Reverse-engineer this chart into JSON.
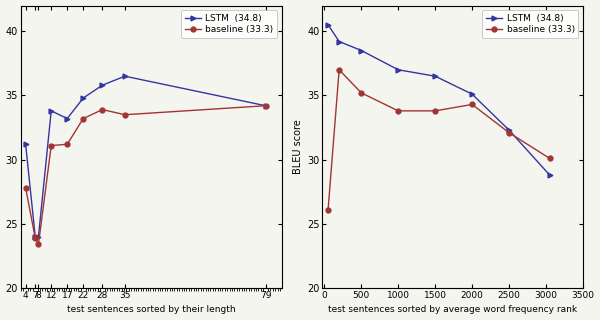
{
  "left": {
    "lstm_x": [
      4,
      7,
      8,
      12,
      17,
      22,
      28,
      35,
      79
    ],
    "lstm_y": [
      31.2,
      24.0,
      24.0,
      33.8,
      33.2,
      34.8,
      35.8,
      36.5,
      34.2
    ],
    "baseline_x": [
      4,
      7,
      8,
      12,
      17,
      22,
      28,
      35,
      79
    ],
    "baseline_y": [
      27.8,
      23.9,
      23.4,
      31.1,
      31.2,
      33.2,
      33.9,
      33.5,
      34.2
    ],
    "xlabel": "test sentences sorted by their length",
    "xtick_labels": [
      "4",
      "7",
      "8",
      "12",
      "17",
      "22",
      "28",
      "35",
      "79"
    ],
    "xticks": [
      4,
      7,
      8,
      12,
      17,
      22,
      28,
      35,
      79
    ],
    "xlim": [
      2.5,
      84
    ],
    "ylim": [
      20,
      42
    ],
    "yticks": [
      20,
      25,
      30,
      35,
      40
    ]
  },
  "right": {
    "lstm_x": [
      50,
      200,
      500,
      1000,
      1500,
      2000,
      2500,
      3050
    ],
    "lstm_y": [
      40.5,
      39.2,
      38.5,
      37.0,
      36.5,
      35.1,
      32.3,
      28.8
    ],
    "baseline_x": [
      50,
      200,
      500,
      1000,
      1500,
      2000,
      2500,
      3050
    ],
    "baseline_y": [
      26.1,
      37.0,
      35.2,
      33.8,
      33.8,
      34.3,
      32.1,
      30.1
    ],
    "xlabel": "test sentences sorted by average word frequency rank",
    "ylabel": "BLEU score",
    "xticks": [
      0,
      500,
      1000,
      1500,
      2000,
      2500,
      3000,
      3500
    ],
    "xlim": [
      -30,
      3500
    ],
    "ylim": [
      20,
      42
    ],
    "yticks": [
      20,
      25,
      30,
      35,
      40
    ]
  },
  "lstm_label": "LSTM  (34.8)",
  "baseline_label": "baseline (33.3)",
  "lstm_color": "#3535a0",
  "baseline_color": "#a03535",
  "bg_color": "#f5f5f0"
}
